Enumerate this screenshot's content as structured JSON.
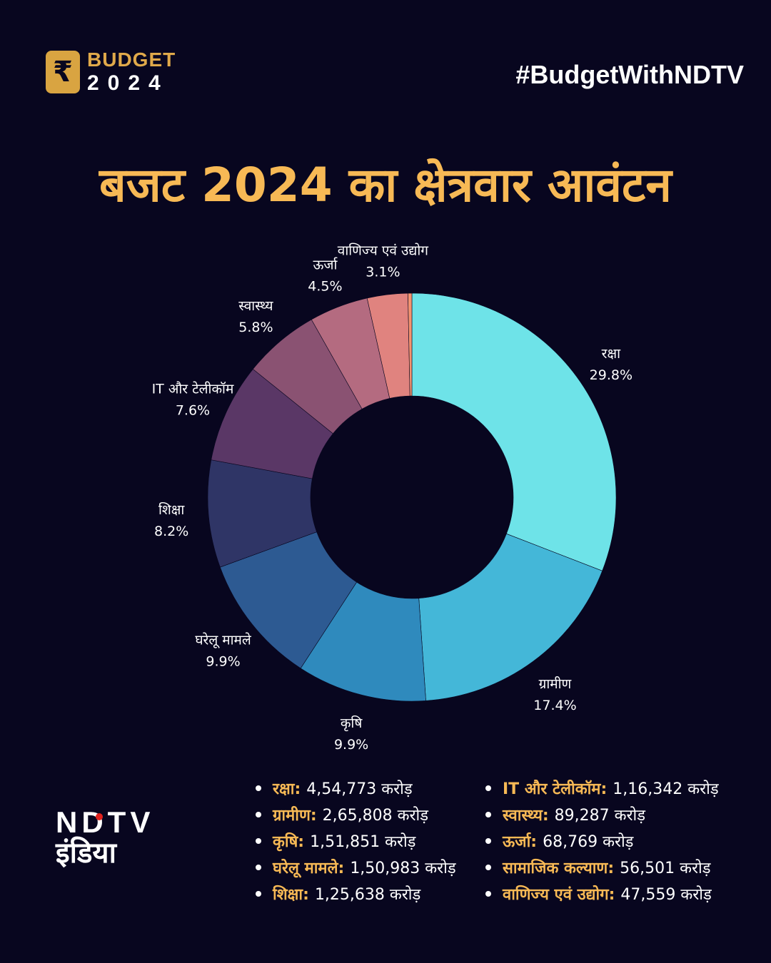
{
  "header": {
    "logo_mark": "₹",
    "logo_line1": "BUDGET",
    "logo_line2": "2024",
    "hashtag": "#BudgetWithNDTV"
  },
  "title": "बजट 2024 का क्षेत्रवार आवंटन",
  "brand": {
    "line1": "NDTV",
    "line2": "इंडिया"
  },
  "chart_data": {
    "type": "pie",
    "style": "donut",
    "slices": [
      {
        "label": "रक्षा",
        "value": 29.8,
        "pct": "29.8%",
        "color": "#6ee3e8"
      },
      {
        "label": "ग्रामीण",
        "value": 17.4,
        "pct": "17.4%",
        "color": "#44b7d8"
      },
      {
        "label": "कृषि",
        "value": 9.9,
        "pct": "9.9%",
        "color": "#2f8abd"
      },
      {
        "label": "घरेलू मामले",
        "value": 9.9,
        "pct": "9.9%",
        "color": "#2d5a92"
      },
      {
        "label": "शिक्षा",
        "value": 8.2,
        "pct": "8.2%",
        "color": "#2f3566"
      },
      {
        "label": "IT और टेलीकॉम",
        "value": 7.6,
        "pct": "7.6%",
        "color": "#5a3766"
      },
      {
        "label": "स्वास्थ्य",
        "value": 5.8,
        "pct": "5.8%",
        "color": "#8a5272"
      },
      {
        "label": "ऊर्जा",
        "value": 4.5,
        "pct": "4.5%",
        "color": "#b46b80"
      },
      {
        "label": "वाणिज्य एवं उद्योग",
        "value": 3.1,
        "pct": "3.1%",
        "color": "#e0837f"
      },
      {
        "label": "",
        "value": 0.3,
        "pct": "",
        "color": "#f49470"
      }
    ]
  },
  "legend": {
    "left": [
      {
        "name": "रक्षा:",
        "value": "4,54,773 करोड़"
      },
      {
        "name": "ग्रामीण:",
        "value": "2,65,808 करोड़"
      },
      {
        "name": "कृषि:",
        "value": "1,51,851 करोड़"
      },
      {
        "name": "घरेलू मामले:",
        "value": "1,50,983 करोड़"
      },
      {
        "name": "शिक्षा:",
        "value": "1,25,638 करोड़"
      }
    ],
    "right": [
      {
        "name": "IT और टेलीकॉम:",
        "value": "1,16,342 करोड़"
      },
      {
        "name": "स्वास्थ्य:",
        "value": "89,287 करोड़"
      },
      {
        "name": "ऊर्जा:",
        "value": "68,769 करोड़"
      },
      {
        "name": "सामाजिक कल्याण:",
        "value": "56,501 करोड़"
      },
      {
        "name": "वाणिज्य एवं उद्योग:",
        "value": "47,559 करोड़"
      }
    ]
  }
}
